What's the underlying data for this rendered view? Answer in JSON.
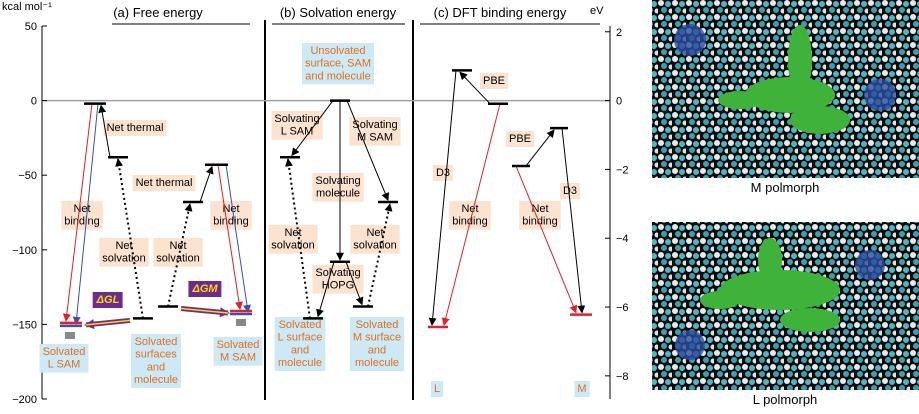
{
  "chart_data": {
    "type": "energy-levels",
    "y_label": "kcal mol⁻¹",
    "ylim": [
      -200,
      50
    ],
    "yticks": [
      {
        "value": -200,
        "label": "−200"
      },
      {
        "value": -150,
        "label": "−150"
      },
      {
        "value": -100,
        "label": "−100"
      },
      {
        "value": -50,
        "label": "−50"
      },
      0,
      50
    ],
    "y2_label": "eV",
    "y2lim": [
      -8.673,
      2.168
    ],
    "y2ticks": [
      {
        "value": -8,
        "label": "−8"
      },
      {
        "value": -6,
        "label": "−6"
      },
      {
        "value": -4,
        "label": "−4"
      },
      {
        "value": -2,
        "label": "−2"
      },
      0,
      2
    ],
    "zero_line_color": "#a0a0a0",
    "panels": [
      {
        "title": "(a) Free energy",
        "levels": [
          {
            "value": -2,
            "color": "#000000"
          },
          {
            "value": -38,
            "color": "#000000"
          },
          {
            "value": -149,
            "color": "#e0202a"
          },
          {
            "value": -151,
            "color": "#3a4fb0"
          },
          {
            "value": -146,
            "color": "#000000"
          },
          {
            "value": -138,
            "color": "#000000"
          },
          {
            "value": -68,
            "color": "#000000"
          },
          {
            "value": -43,
            "color": "#000000"
          },
          {
            "value": -141,
            "color": "#e0202a"
          },
          {
            "value": -143,
            "color": "#3a4fb0"
          }
        ],
        "annotations": [
          {
            "text": "Net thermal",
            "style": "peach"
          },
          {
            "text": "Net thermal",
            "style": "peach"
          },
          {
            "text": "Net\nbinding",
            "style": "peach"
          },
          {
            "text": "Net\nbinding",
            "style": "peach"
          },
          {
            "text": "Net\nsolvation",
            "style": "peach"
          },
          {
            "text": "Net\nsolvation",
            "style": "peach"
          },
          {
            "text": "ΔGL",
            "style": "purple"
          },
          {
            "text": "ΔGM",
            "style": "purple"
          },
          {
            "text": "Solvated\nL SAM",
            "style": "blue"
          },
          {
            "text": "Solvated\nsurfaces\nand\nmolecule",
            "style": "blue"
          },
          {
            "text": "Solvated\nM SAM",
            "style": "blue"
          }
        ]
      },
      {
        "title": "(b) Solvation energy",
        "levels": [
          {
            "value": 0,
            "color": "#000000"
          },
          {
            "value": -38,
            "color": "#000000"
          },
          {
            "value": -68,
            "color": "#000000"
          },
          {
            "value": -108,
            "color": "#000000"
          },
          {
            "value": -146,
            "color": "#000000"
          },
          {
            "value": -138,
            "color": "#000000"
          }
        ],
        "annotations": [
          {
            "text": "Unsolvated\nsurface, SAM\nand molecule",
            "style": "blue"
          },
          {
            "text": "Solvating\nL SAM",
            "style": "peach"
          },
          {
            "text": "Solvating\nM SAM",
            "style": "peach"
          },
          {
            "text": "Solvating\nmolecule",
            "style": "peach"
          },
          {
            "text": "Net\nsolvation",
            "style": "peach"
          },
          {
            "text": "Net\nsolvation",
            "style": "peach"
          },
          {
            "text": "Solvating\nHOPG",
            "style": "peach"
          },
          {
            "text": "Solvated\nL surface\nand\nmolecule",
            "style": "blue"
          },
          {
            "text": "Solvated\nM surface\nand\nmolecule",
            "style": "blue"
          }
        ]
      },
      {
        "title": "(c) DFT binding energy",
        "axis": "y2",
        "levels": [
          {
            "value": 0.88,
            "color": "#000000"
          },
          {
            "value": -0.09,
            "color": "#000000"
          },
          {
            "value": -0.8,
            "color": "#000000"
          },
          {
            "value": -1.9,
            "color": "#000000"
          },
          {
            "value": -6.58,
            "color": "#e0202a"
          },
          {
            "value": -6.22,
            "color": "#e0202a"
          }
        ],
        "annotations": [
          {
            "text": "PBE",
            "style": "peach"
          },
          {
            "text": "PBE",
            "style": "peach"
          },
          {
            "text": "D3",
            "style": "peach"
          },
          {
            "text": "D3",
            "style": "peach"
          },
          {
            "text": "Net\nbinding",
            "style": "peach"
          },
          {
            "text": "Net\nbinding",
            "style": "peach"
          },
          {
            "text": "L",
            "style": "blue"
          },
          {
            "text": "M",
            "style": "blue"
          }
        ]
      }
    ],
    "images": [
      {
        "caption": "M polmorph"
      },
      {
        "caption": "L polmorph"
      }
    ]
  }
}
